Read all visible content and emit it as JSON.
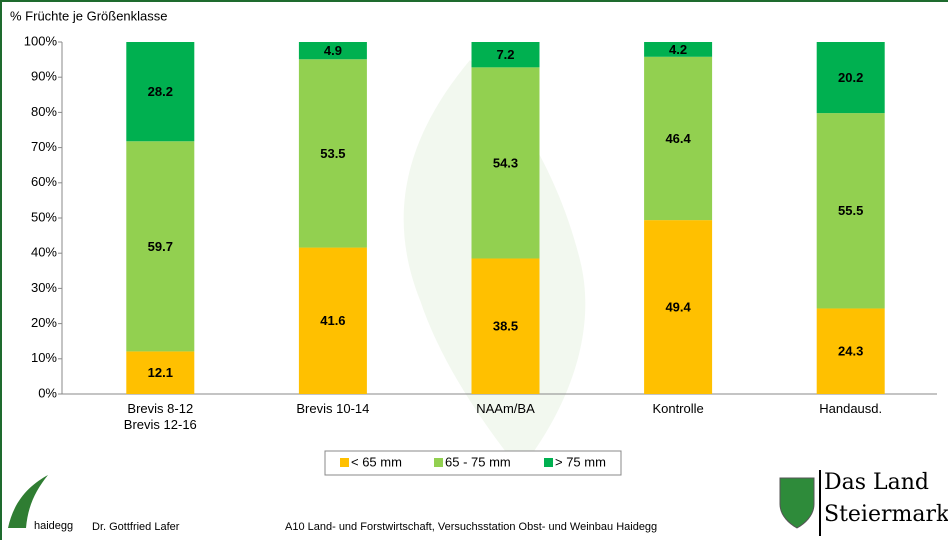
{
  "chart_data": {
    "type": "stacked-bar",
    "title": "% Früchte je Größenklasse",
    "categories": [
      "Brevis 8-12\nBrevis 12-16",
      "Brevis 10-14",
      "NAAm/BA",
      "Kontrolle",
      "Handausd."
    ],
    "series": [
      {
        "name": "< 65 mm",
        "color": "#ffc000",
        "values": [
          12.1,
          41.6,
          38.5,
          49.4,
          24.3
        ]
      },
      {
        "name": "65 - 75 mm",
        "color": "#92d050",
        "values": [
          59.7,
          53.5,
          54.3,
          46.4,
          55.5
        ]
      },
      {
        "name": "> 75 mm",
        "color": "#00b050",
        "values": [
          28.2,
          4.9,
          7.2,
          4.2,
          20.2
        ]
      }
    ],
    "ylim": [
      0,
      100
    ],
    "yticks": [
      {
        "value": 0,
        "label": "0%"
      },
      {
        "value": 10,
        "label": "10%"
      },
      {
        "value": 20,
        "label": "20%"
      },
      {
        "value": 30,
        "label": "30%"
      },
      {
        "value": 40,
        "label": "40%"
      },
      {
        "value": 50,
        "label": "50%"
      },
      {
        "value": 60,
        "label": "60%"
      },
      {
        "value": 70,
        "label": "70%"
      },
      {
        "value": 80,
        "label": "80%"
      },
      {
        "value": 90,
        "label": "90%"
      },
      {
        "value": 100,
        "label": "100%"
      }
    ],
    "grid": false,
    "legend": "bottom"
  },
  "footer": {
    "logo": "haidegg",
    "author": "Dr. Gottfried Lafer",
    "institution": "A10 Land- und Forstwirtschaft, Versuchsstation Obst- und Weinbau Haidegg",
    "brand_line1": "Das Land",
    "brand_line2": "Steiermark"
  }
}
